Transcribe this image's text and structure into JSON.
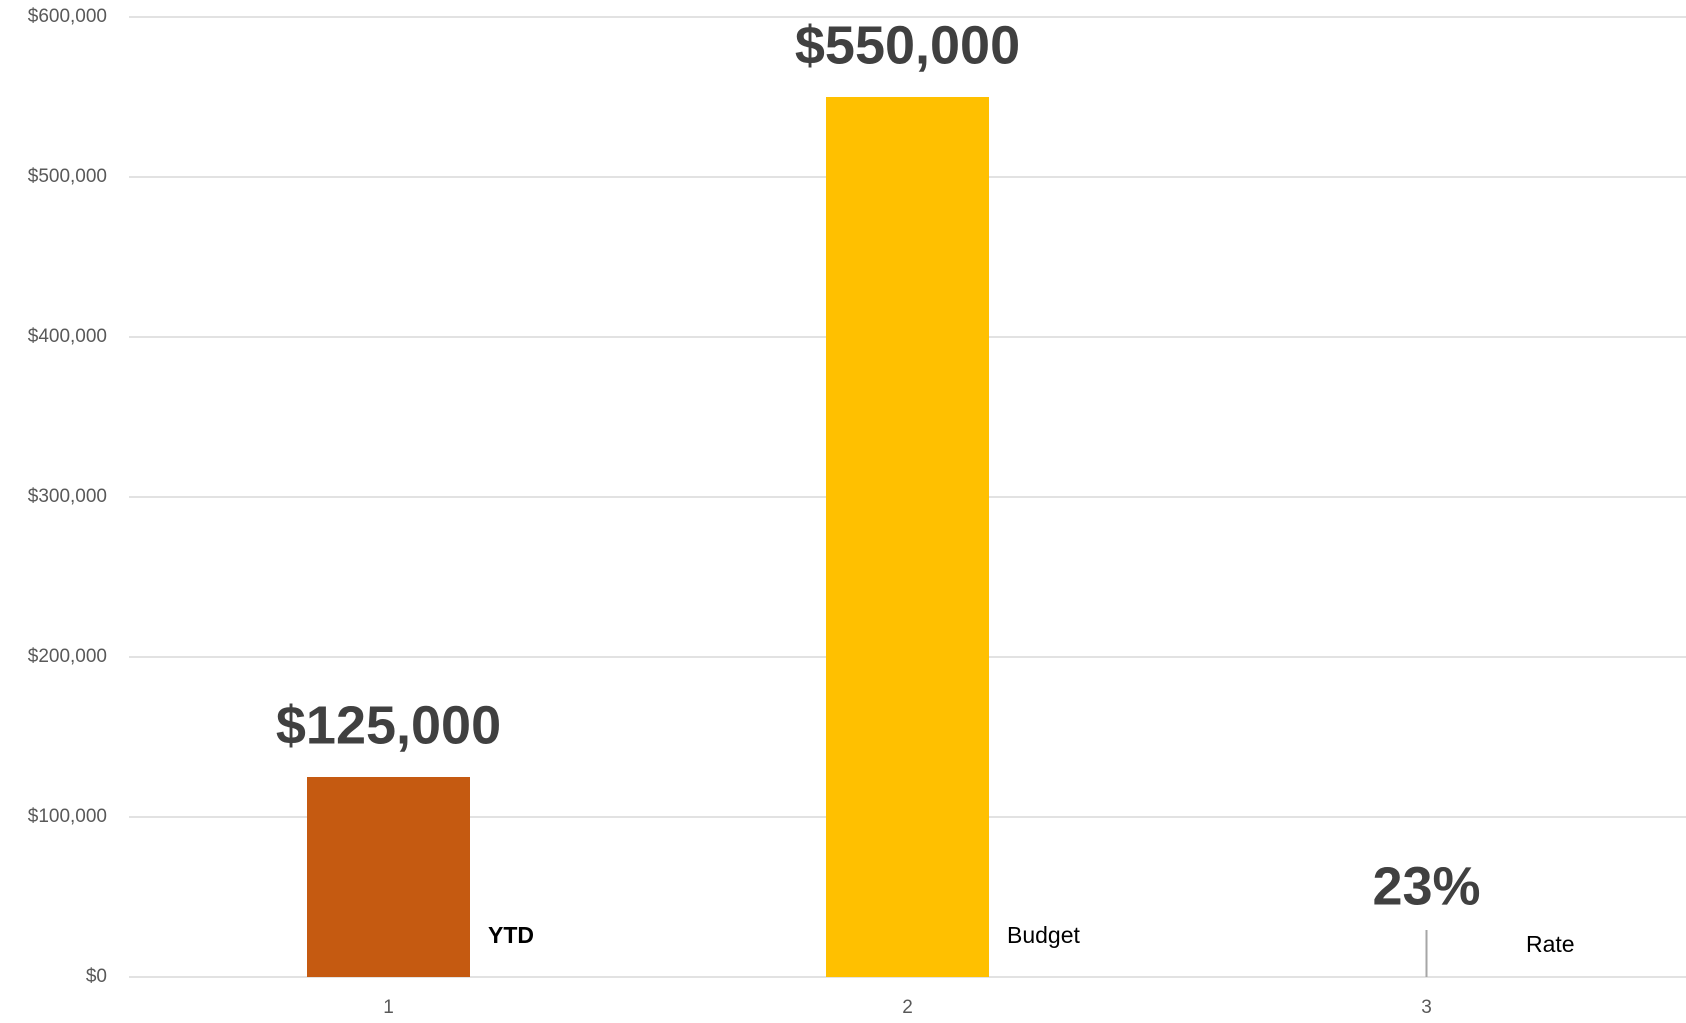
{
  "chart_data": {
    "type": "bar",
    "categories": [
      "1",
      "2",
      "3"
    ],
    "values": [
      125000,
      550000,
      0.23
    ],
    "value_labels": [
      "$125,000",
      "$550,000",
      "23%"
    ],
    "colors": [
      "#c55a11",
      "#ffc000",
      "#a6a6a6"
    ],
    "labels": [
      "YTD",
      "Budget",
      "Rate"
    ],
    "ylim": [
      0,
      600000
    ],
    "yticks": [
      {
        "value": 0,
        "label": "$0"
      },
      {
        "value": 100000,
        "label": "$100,000"
      },
      {
        "value": 200000,
        "label": "$200,000"
      },
      {
        "value": 300000,
        "label": "$300,000"
      },
      {
        "value": 400000,
        "label": "$400,000"
      },
      {
        "value": 500000,
        "label": "$500,000"
      },
      {
        "value": 600000,
        "label": "$600,000"
      }
    ],
    "grid": true
  }
}
